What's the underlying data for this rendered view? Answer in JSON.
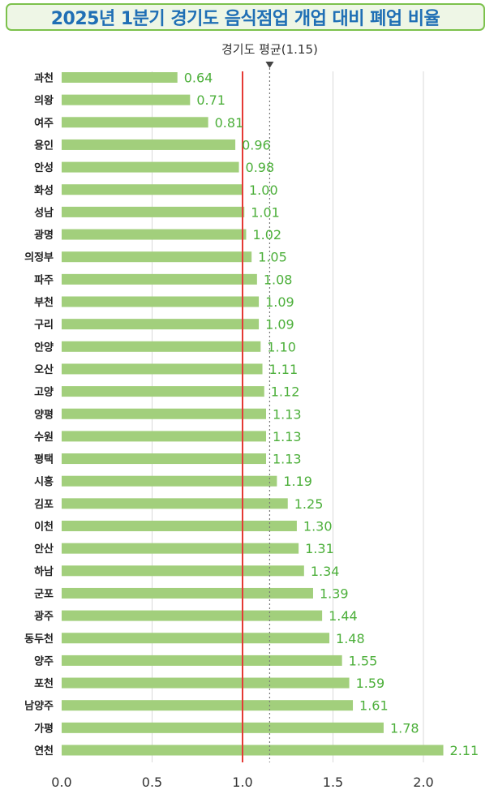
{
  "title": "2025년 1분기 경기도 음식점업 개업 대비 폐업 비율",
  "colors": {
    "bar": "#a2cf7c",
    "value_label": "#4caf3a",
    "title_text": "#1f6fb5",
    "title_border": "#7cc14c",
    "title_bg": "#eef6e6",
    "reference_line": "#e53935",
    "average_line": "#777777",
    "grid": "#d9d9d9"
  },
  "chart_data": {
    "type": "bar",
    "orientation": "horizontal",
    "title": "2025년 1분기 경기도 음식점업 개업 대비 폐업 비율",
    "categories": [
      "과천",
      "의왕",
      "여주",
      "용인",
      "안성",
      "화성",
      "성남",
      "광명",
      "의정부",
      "파주",
      "부천",
      "구리",
      "안양",
      "오산",
      "고양",
      "양평",
      "수원",
      "평택",
      "시흥",
      "김포",
      "이천",
      "안산",
      "하남",
      "군포",
      "광주",
      "동두천",
      "양주",
      "포천",
      "남양주",
      "가평",
      "연천"
    ],
    "values": [
      0.64,
      0.71,
      0.81,
      0.96,
      0.98,
      1.0,
      1.01,
      1.02,
      1.05,
      1.08,
      1.09,
      1.09,
      1.1,
      1.11,
      1.12,
      1.13,
      1.13,
      1.13,
      1.19,
      1.25,
      1.3,
      1.31,
      1.34,
      1.39,
      1.44,
      1.48,
      1.55,
      1.59,
      1.61,
      1.78,
      2.11
    ],
    "value_labels": [
      "0.64",
      "0.71",
      "0.81",
      "0.96",
      "0.98",
      "1.00",
      "1.01",
      "1.02",
      "1.05",
      "1.08",
      "1.09",
      "1.09",
      "1.10",
      "1.11",
      "1.12",
      "1.13",
      "1.13",
      "1.13",
      "1.19",
      "1.25",
      "1.30",
      "1.31",
      "1.34",
      "1.39",
      "1.44",
      "1.48",
      "1.55",
      "1.59",
      "1.61",
      "1.78",
      "2.11"
    ],
    "xlim": [
      0,
      2.2
    ],
    "xticks": [
      0.0,
      0.5,
      1.0,
      1.5,
      2.0
    ],
    "xtick_labels": [
      "0.0",
      "0.5",
      "1.0",
      "1.5",
      "2.0"
    ],
    "reference_line": 1.0,
    "average_line": 1.15,
    "average_label": "경기도 평균(1.15)",
    "grid": true
  }
}
